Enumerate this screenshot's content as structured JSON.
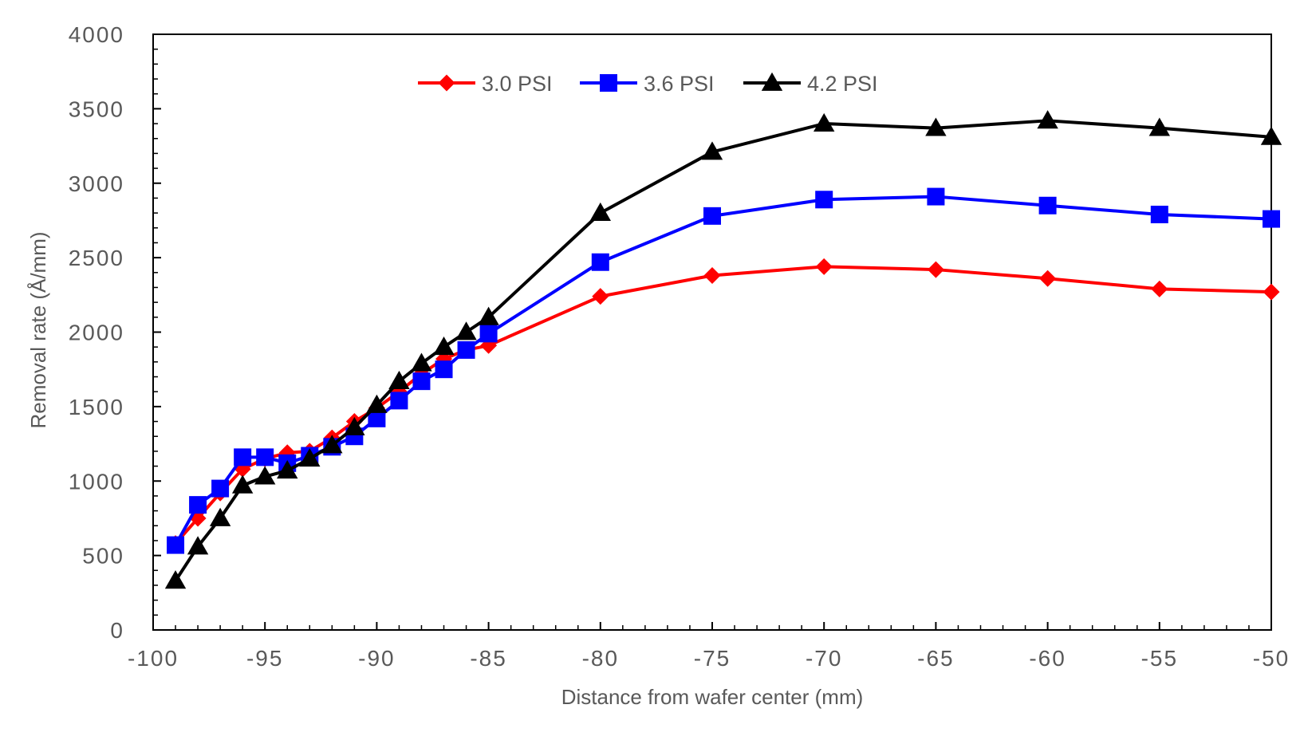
{
  "chart_data": {
    "type": "line",
    "title": "",
    "xlabel": "Distance from wafer center (mm)",
    "ylabel": "Removal rate (Å/mm)",
    "xlim": [
      -100,
      -50
    ],
    "ylim": [
      0,
      4000
    ],
    "x_ticks": [
      -100,
      -95,
      -90,
      -85,
      -80,
      -75,
      -70,
      -65,
      -60,
      -55,
      -50
    ],
    "y_ticks": [
      0,
      500,
      1000,
      1500,
      2000,
      2500,
      3000,
      3500,
      4000
    ],
    "grid": false,
    "legend_position": "top-center",
    "series": [
      {
        "name": "3.0 PSI",
        "color": "#ff0000",
        "marker": "diamond",
        "x": [
          -99,
          -98,
          -97,
          -96,
          -95,
          -94,
          -93,
          -92,
          -91,
          -90,
          -89,
          -88,
          -87,
          -86,
          -85,
          -80,
          -75,
          -70,
          -65,
          -60,
          -55,
          -50
        ],
        "y": [
          580,
          750,
          920,
          1080,
          1150,
          1190,
          1200,
          1290,
          1400,
          1490,
          1600,
          1720,
          1820,
          1880,
          1910,
          2240,
          2380,
          2440,
          2420,
          2360,
          2290,
          2270
        ]
      },
      {
        "name": "3.6 PSI",
        "color": "#0000ff",
        "marker": "square",
        "x": [
          -99,
          -98,
          -97,
          -96,
          -95,
          -94,
          -93,
          -92,
          -91,
          -90,
          -89,
          -88,
          -87,
          -86,
          -85,
          -80,
          -75,
          -70,
          -65,
          -60,
          -55,
          -50
        ],
        "y": [
          570,
          840,
          950,
          1160,
          1160,
          1120,
          1170,
          1230,
          1300,
          1420,
          1540,
          1670,
          1750,
          1880,
          1990,
          2470,
          2780,
          2890,
          2910,
          2850,
          2790,
          2760
        ]
      },
      {
        "name": "4.2 PSI",
        "color": "#000000",
        "marker": "triangle",
        "x": [
          -99,
          -98,
          -97,
          -96,
          -95,
          -94,
          -93,
          -92,
          -91,
          -90,
          -89,
          -88,
          -87,
          -86,
          -85,
          -80,
          -75,
          -70,
          -65,
          -60,
          -55,
          -50
        ],
        "y": [
          330,
          560,
          750,
          970,
          1030,
          1070,
          1150,
          1240,
          1360,
          1510,
          1670,
          1790,
          1900,
          2000,
          2100,
          2800,
          3210,
          3400,
          3370,
          3420,
          3370,
          3310
        ]
      }
    ]
  }
}
